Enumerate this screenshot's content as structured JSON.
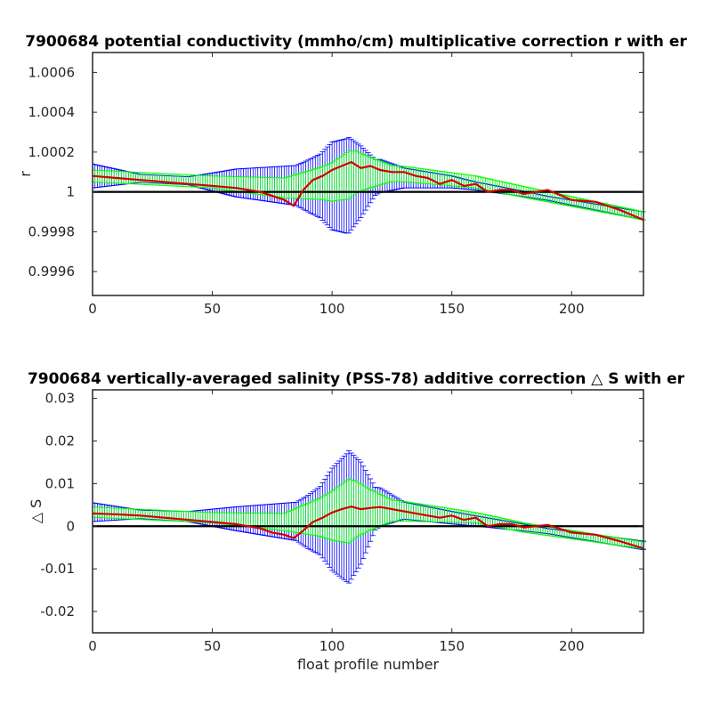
{
  "colors": {
    "errorbar_wide": "#0000ff",
    "errorbar_narrow": "#00ff00",
    "correction_line": "#d00000",
    "reference_line": "#000000",
    "axes": "#262626"
  },
  "chart_data": [
    {
      "type": "line",
      "title": "7900684 potential conductivity (mmho/cm) multiplicative correction r with er",
      "xlabel": "",
      "ylabel": "r",
      "xlim": [
        0,
        230
      ],
      "ylim": [
        0.99948,
        1.0007
      ],
      "xticks": [
        "0",
        "50",
        "100",
        "150",
        "200"
      ],
      "yticks": [
        "0.9996",
        "0.9998",
        "1",
        "1.0002",
        "1.0004",
        "1.0006"
      ],
      "xtick_values": [
        0,
        50,
        100,
        150,
        200
      ],
      "ytick_values": [
        0.9996,
        0.9998,
        1.0,
        1.0002,
        1.0004,
        1.0006
      ],
      "reference": 1.0,
      "x_range": [
        0,
        230
      ],
      "correction_points": [
        [
          0,
          1.00008
        ],
        [
          10,
          1.00007
        ],
        [
          20,
          1.00006
        ],
        [
          30,
          1.00005
        ],
        [
          40,
          1.00004
        ],
        [
          50,
          1.00003
        ],
        [
          60,
          1.00002
        ],
        [
          70,
          1.0
        ],
        [
          80,
          0.99996
        ],
        [
          84,
          0.99993
        ],
        [
          88,
          1.00001
        ],
        [
          92,
          1.00006
        ],
        [
          96,
          1.00008
        ],
        [
          100,
          1.00011
        ],
        [
          104,
          1.00013
        ],
        [
          108,
          1.00015
        ],
        [
          112,
          1.00012
        ],
        [
          116,
          1.00013
        ],
        [
          120,
          1.00011
        ],
        [
          125,
          1.0001
        ],
        [
          130,
          1.0001
        ],
        [
          135,
          1.00008
        ],
        [
          140,
          1.00007
        ],
        [
          145,
          1.00004
        ],
        [
          150,
          1.00006
        ],
        [
          155,
          1.00003
        ],
        [
          160,
          1.00004
        ],
        [
          165,
          1.0
        ],
        [
          170,
          1.00001
        ],
        [
          175,
          1.00001
        ],
        [
          180,
          0.99999
        ],
        [
          190,
          1.00001
        ],
        [
          200,
          0.99996
        ],
        [
          210,
          0.99995
        ],
        [
          220,
          0.99991
        ],
        [
          230,
          0.99986
        ]
      ],
      "wide_error_center": [
        [
          0,
          1.00008
        ],
        [
          50,
          1.00005
        ],
        [
          90,
          1.00003
        ],
        [
          106,
          1.00003
        ],
        [
          120,
          1.00008
        ],
        [
          150,
          1.00005
        ],
        [
          180,
          0.99999
        ],
        [
          230,
          0.99988
        ]
      ],
      "wide_error_halfwidth": [
        [
          0,
          6e-05
        ],
        [
          20,
          2e-05
        ],
        [
          40,
          2e-05
        ],
        [
          60,
          7e-05
        ],
        [
          85,
          0.0001
        ],
        [
          95,
          0.00016
        ],
        [
          100,
          0.00022
        ],
        [
          107,
          0.00024
        ],
        [
          112,
          0.00018
        ],
        [
          118,
          9e-05
        ],
        [
          130,
          5e-05
        ],
        [
          160,
          2e-05
        ],
        [
          190,
          1e-05
        ],
        [
          230,
          2e-05
        ]
      ],
      "narrow_error_center": [
        [
          0,
          1.00008
        ],
        [
          50,
          1.00005
        ],
        [
          80,
          1.00002
        ],
        [
          100,
          1.00005
        ],
        [
          110,
          1.0001
        ],
        [
          130,
          1.00009
        ],
        [
          160,
          1.00005
        ],
        [
          180,
          1.0
        ],
        [
          230,
          0.99988
        ]
      ],
      "narrow_error_halfwidth": [
        [
          0,
          3e-05
        ],
        [
          50,
          3e-05
        ],
        [
          80,
          5e-05
        ],
        [
          95,
          8e-05
        ],
        [
          107,
          0.00012
        ],
        [
          115,
          8e-05
        ],
        [
          125,
          4e-05
        ],
        [
          160,
          3e-05
        ],
        [
          230,
          2e-05
        ]
      ]
    },
    {
      "type": "line",
      "title": "7900684 vertically-averaged salinity (PSS-78) additive correction △ S with er",
      "xlabel": "float profile number",
      "ylabel": "△ S",
      "xlim": [
        0,
        230
      ],
      "ylim": [
        -0.025,
        0.032
      ],
      "xticks": [
        "0",
        "50",
        "100",
        "150",
        "200"
      ],
      "yticks": [
        "-0.02",
        "-0.01",
        "0",
        "0.01",
        "0.02",
        "0.03"
      ],
      "xtick_values": [
        0,
        50,
        100,
        150,
        200
      ],
      "ytick_values": [
        -0.02,
        -0.01,
        0,
        0.01,
        0.02,
        0.03
      ],
      "reference": 0,
      "x_range": [
        0,
        230
      ],
      "correction_points": [
        [
          0,
          0.003
        ],
        [
          10,
          0.0028
        ],
        [
          20,
          0.0025
        ],
        [
          30,
          0.002
        ],
        [
          40,
          0.0015
        ],
        [
          50,
          0.001
        ],
        [
          60,
          0.0005
        ],
        [
          70,
          -0.0005
        ],
        [
          75,
          -0.0015
        ],
        [
          80,
          -0.002
        ],
        [
          84,
          -0.0028
        ],
        [
          88,
          -0.001
        ],
        [
          92,
          0.001
        ],
        [
          96,
          0.002
        ],
        [
          100,
          0.0032
        ],
        [
          104,
          0.004
        ],
        [
          108,
          0.0046
        ],
        [
          112,
          0.004
        ],
        [
          116,
          0.0043
        ],
        [
          120,
          0.0045
        ],
        [
          125,
          0.004
        ],
        [
          130,
          0.0035
        ],
        [
          135,
          0.003
        ],
        [
          140,
          0.0025
        ],
        [
          145,
          0.002
        ],
        [
          150,
          0.0025
        ],
        [
          155,
          0.0015
        ],
        [
          160,
          0.002
        ],
        [
          165,
          0.0
        ],
        [
          170,
          0.0005
        ],
        [
          175,
          0.0005
        ],
        [
          180,
          -0.0003
        ],
        [
          190,
          0.0003
        ],
        [
          200,
          -0.0015
        ],
        [
          210,
          -0.002
        ],
        [
          220,
          -0.0035
        ],
        [
          230,
          -0.0052
        ]
      ],
      "wide_error_center": [
        [
          0,
          0.0033
        ],
        [
          50,
          0.002
        ],
        [
          90,
          0.001
        ],
        [
          106,
          0.002
        ],
        [
          120,
          0.0045
        ],
        [
          150,
          0.002
        ],
        [
          180,
          -0.0003
        ],
        [
          230,
          -0.0045
        ]
      ],
      "wide_error_halfwidth": [
        [
          0,
          0.0022
        ],
        [
          20,
          0.001
        ],
        [
          40,
          0.0012
        ],
        [
          60,
          0.0028
        ],
        [
          85,
          0.0045
        ],
        [
          95,
          0.008
        ],
        [
          100,
          0.012
        ],
        [
          107,
          0.0155
        ],
        [
          112,
          0.012
        ],
        [
          118,
          0.005
        ],
        [
          130,
          0.002
        ],
        [
          160,
          0.0012
        ],
        [
          190,
          0.0006
        ],
        [
          230,
          0.001
        ]
      ],
      "narrow_error_center": [
        [
          0,
          0.0033
        ],
        [
          50,
          0.002
        ],
        [
          80,
          0.001
        ],
        [
          100,
          0.0025
        ],
        [
          110,
          0.004
        ],
        [
          130,
          0.0035
        ],
        [
          160,
          0.002
        ],
        [
          180,
          -0.0003
        ],
        [
          230,
          -0.0045
        ]
      ],
      "narrow_error_halfwidth": [
        [
          0,
          0.0012
        ],
        [
          50,
          0.0012
        ],
        [
          80,
          0.002
        ],
        [
          95,
          0.0045
        ],
        [
          107,
          0.0075
        ],
        [
          115,
          0.005
        ],
        [
          125,
          0.0025
        ],
        [
          160,
          0.0012
        ],
        [
          230,
          0.0008
        ]
      ]
    }
  ]
}
